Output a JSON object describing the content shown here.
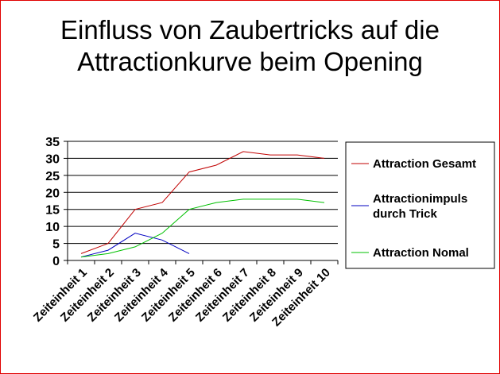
{
  "chart_data": {
    "type": "line",
    "title": "Einfluss von Zaubertricks auf die Attractionkurve beim Opening",
    "title_lines": [
      "Einfluss von Zaubertricks auf die",
      "Attractionkurve beim Opening"
    ],
    "categories": [
      "Zeiteinheit 1",
      "Zeiteinheit 2",
      "Zeiteinheit 3",
      "Zeiteinheit 4",
      "Zeiteinheit 5",
      "Zeiteinheit 6",
      "Zeiteinheit 7",
      "Zeiteinheit 8",
      "Zeiteinheit 9",
      "Zeiteinheit 10"
    ],
    "series": [
      {
        "name": "Attraction Gesamt",
        "color": "#c00000",
        "values": [
          2,
          5,
          15,
          17,
          26,
          28,
          32,
          31,
          31,
          30
        ]
      },
      {
        "name": "Attractionimpuls durch Trick",
        "name_lines": [
          "Attractionimpuls",
          "durch Trick"
        ],
        "color": "#0000c0",
        "values": [
          1,
          3,
          8,
          6,
          2,
          null,
          null,
          null,
          null,
          null
        ]
      },
      {
        "name": "Attraction Nomal",
        "color": "#00c000",
        "values": [
          1,
          2,
          4,
          8,
          15,
          17,
          18,
          18,
          18,
          17
        ]
      }
    ],
    "yticks": [
      0,
      5,
      10,
      15,
      20,
      25,
      30,
      35
    ],
    "ylim": [
      0,
      35
    ],
    "grid": true,
    "legend": "right",
    "xlabel": "",
    "ylabel": ""
  }
}
